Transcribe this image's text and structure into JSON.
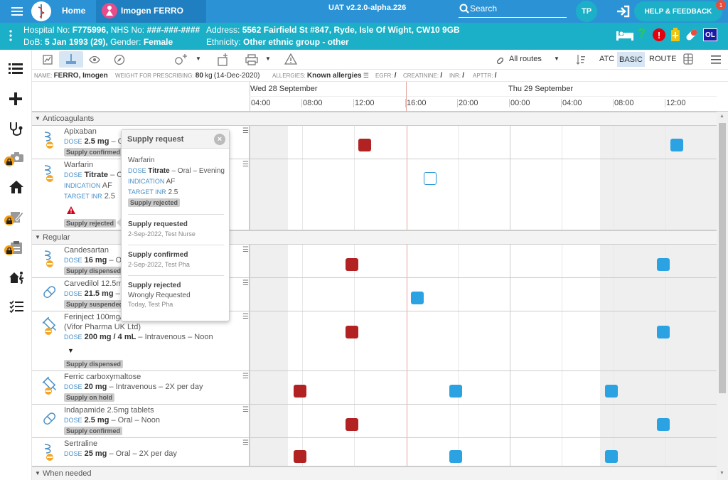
{
  "topbar": {
    "home": "Home",
    "patient_name": "Imogen FERRO",
    "version": "UAT v2.2.0-alpha.226",
    "search": "Search",
    "user_initials": "TP",
    "help": "HELP & FEEDBACK",
    "notif_count": "1"
  },
  "patient": {
    "hosp_label": "Hospital No:",
    "hosp": "F775996,",
    "nhs_label": "NHS No:",
    "nhs": "###-###-####",
    "address_label": "Address:",
    "address": "5562 Fairfield St #847, Ryde, Isle Of Wight, CW10 9GB",
    "dob_label": "DoB:",
    "dob": "5 Jan 1993 (29),",
    "gender_label": "Gender:",
    "gender": "Female",
    "eth_label": "Ethnicity:",
    "eth": "Other ethnic group - other",
    "badge_ol": "OL"
  },
  "toolbar": {
    "routes": "All routes",
    "atc": "ATC",
    "basic": "BASIC",
    "route": "ROUTE"
  },
  "info": {
    "name_label": "NAME:",
    "name": "FERRO, Imogen",
    "weight_label": "WEIGHT FOR PRESCRIBING:",
    "weight": "80",
    "weight_unit": "kg",
    "weight_date": "(14-Dec-2020)",
    "allergies_label": "ALLERGIES:",
    "allergies": "Known allergies",
    "egfr_label": "EGFR:",
    "egfr": "/",
    "creat_label": "CREATININE:",
    "creat": "/",
    "inr_label": "INR:",
    "inr": "/",
    "aptt_label": "APTTR:",
    "aptt": "/"
  },
  "timeline": {
    "day1": "Wed 28 September",
    "day2": "Thu 29 September",
    "hours": [
      "04:00",
      "08:00",
      "12:00",
      "16:00",
      "20:00",
      "00:00",
      "04:00",
      "08:00",
      "12:00"
    ]
  },
  "sections": {
    "anticoag": "Anticoagulants",
    "regular": "Regular",
    "when_needed": "When needed"
  },
  "meds": [
    {
      "name": "Apixaban",
      "dose_label": "DOSE",
      "dose": "2.5 mg",
      "route": "– Or",
      "status": "Supply confirmed"
    },
    {
      "name": "Warfarin",
      "dose_label": "DOSE",
      "dose": "Titrate",
      "route": "– Or",
      "ind_label": "INDICATION",
      "ind": "AF",
      "tinr_label": "TARGET INR",
      "tinr": "2.5",
      "status": "Supply rejected"
    },
    {
      "name": "Candesartan",
      "dose_label": "DOSE",
      "dose": "16 mg",
      "route": "– Or",
      "status": "Supply dispensed"
    },
    {
      "name": "Carvedilol 12.5mg",
      "dose_label": "DOSE",
      "dose": "21.5 mg",
      "route": "– O",
      "status": "Supply suspended"
    },
    {
      "name": "Ferinject 100mg/2",
      "name2": "(Vifor Pharma UK Ltd)",
      "dose_label": "DOSE",
      "dose": "200 mg / 4 mL",
      "route": "– Intravenous – Noon",
      "status": "Supply dispensed"
    },
    {
      "name": "Ferric carboxymaltose",
      "dose_label": "DOSE",
      "dose": "20 mg",
      "route": "– Intravenous – 2X per day",
      "status": "Supply on hold"
    },
    {
      "name": "Indapamide 2.5mg tablets",
      "dose_label": "DOSE",
      "dose": "2.5 mg",
      "route": "– Oral – Noon",
      "status": "Supply confirmed"
    },
    {
      "name": "Sertraline",
      "dose_label": "DOSE",
      "dose": "25 mg",
      "route": "– Oral – 2X per day"
    }
  ],
  "popup": {
    "title": "Supply request",
    "med": "Warfarin",
    "dose_label": "DOSE",
    "dose": "Titrate",
    "dose_rest": "– Oral – Evening",
    "ind_label": "INDICATION",
    "ind": "AF",
    "tinr_label": "TARGET INR",
    "tinr": "2.5",
    "status": "Supply rejected",
    "events": [
      {
        "title": "Supply requested",
        "detail": "",
        "meta": "2-Sep-2022, Test Nurse"
      },
      {
        "title": "Supply confirmed",
        "detail": "",
        "meta": "2-Sep-2022, Test Pha"
      },
      {
        "title": "Supply rejected",
        "detail": "Wrongly Requested",
        "meta": "Today, Test Pha"
      }
    ]
  },
  "colors": {
    "topbar": "#2b93d5",
    "patbar": "#1cb0c8",
    "given": "#b22222",
    "scheduled": "#2ba3e2"
  }
}
